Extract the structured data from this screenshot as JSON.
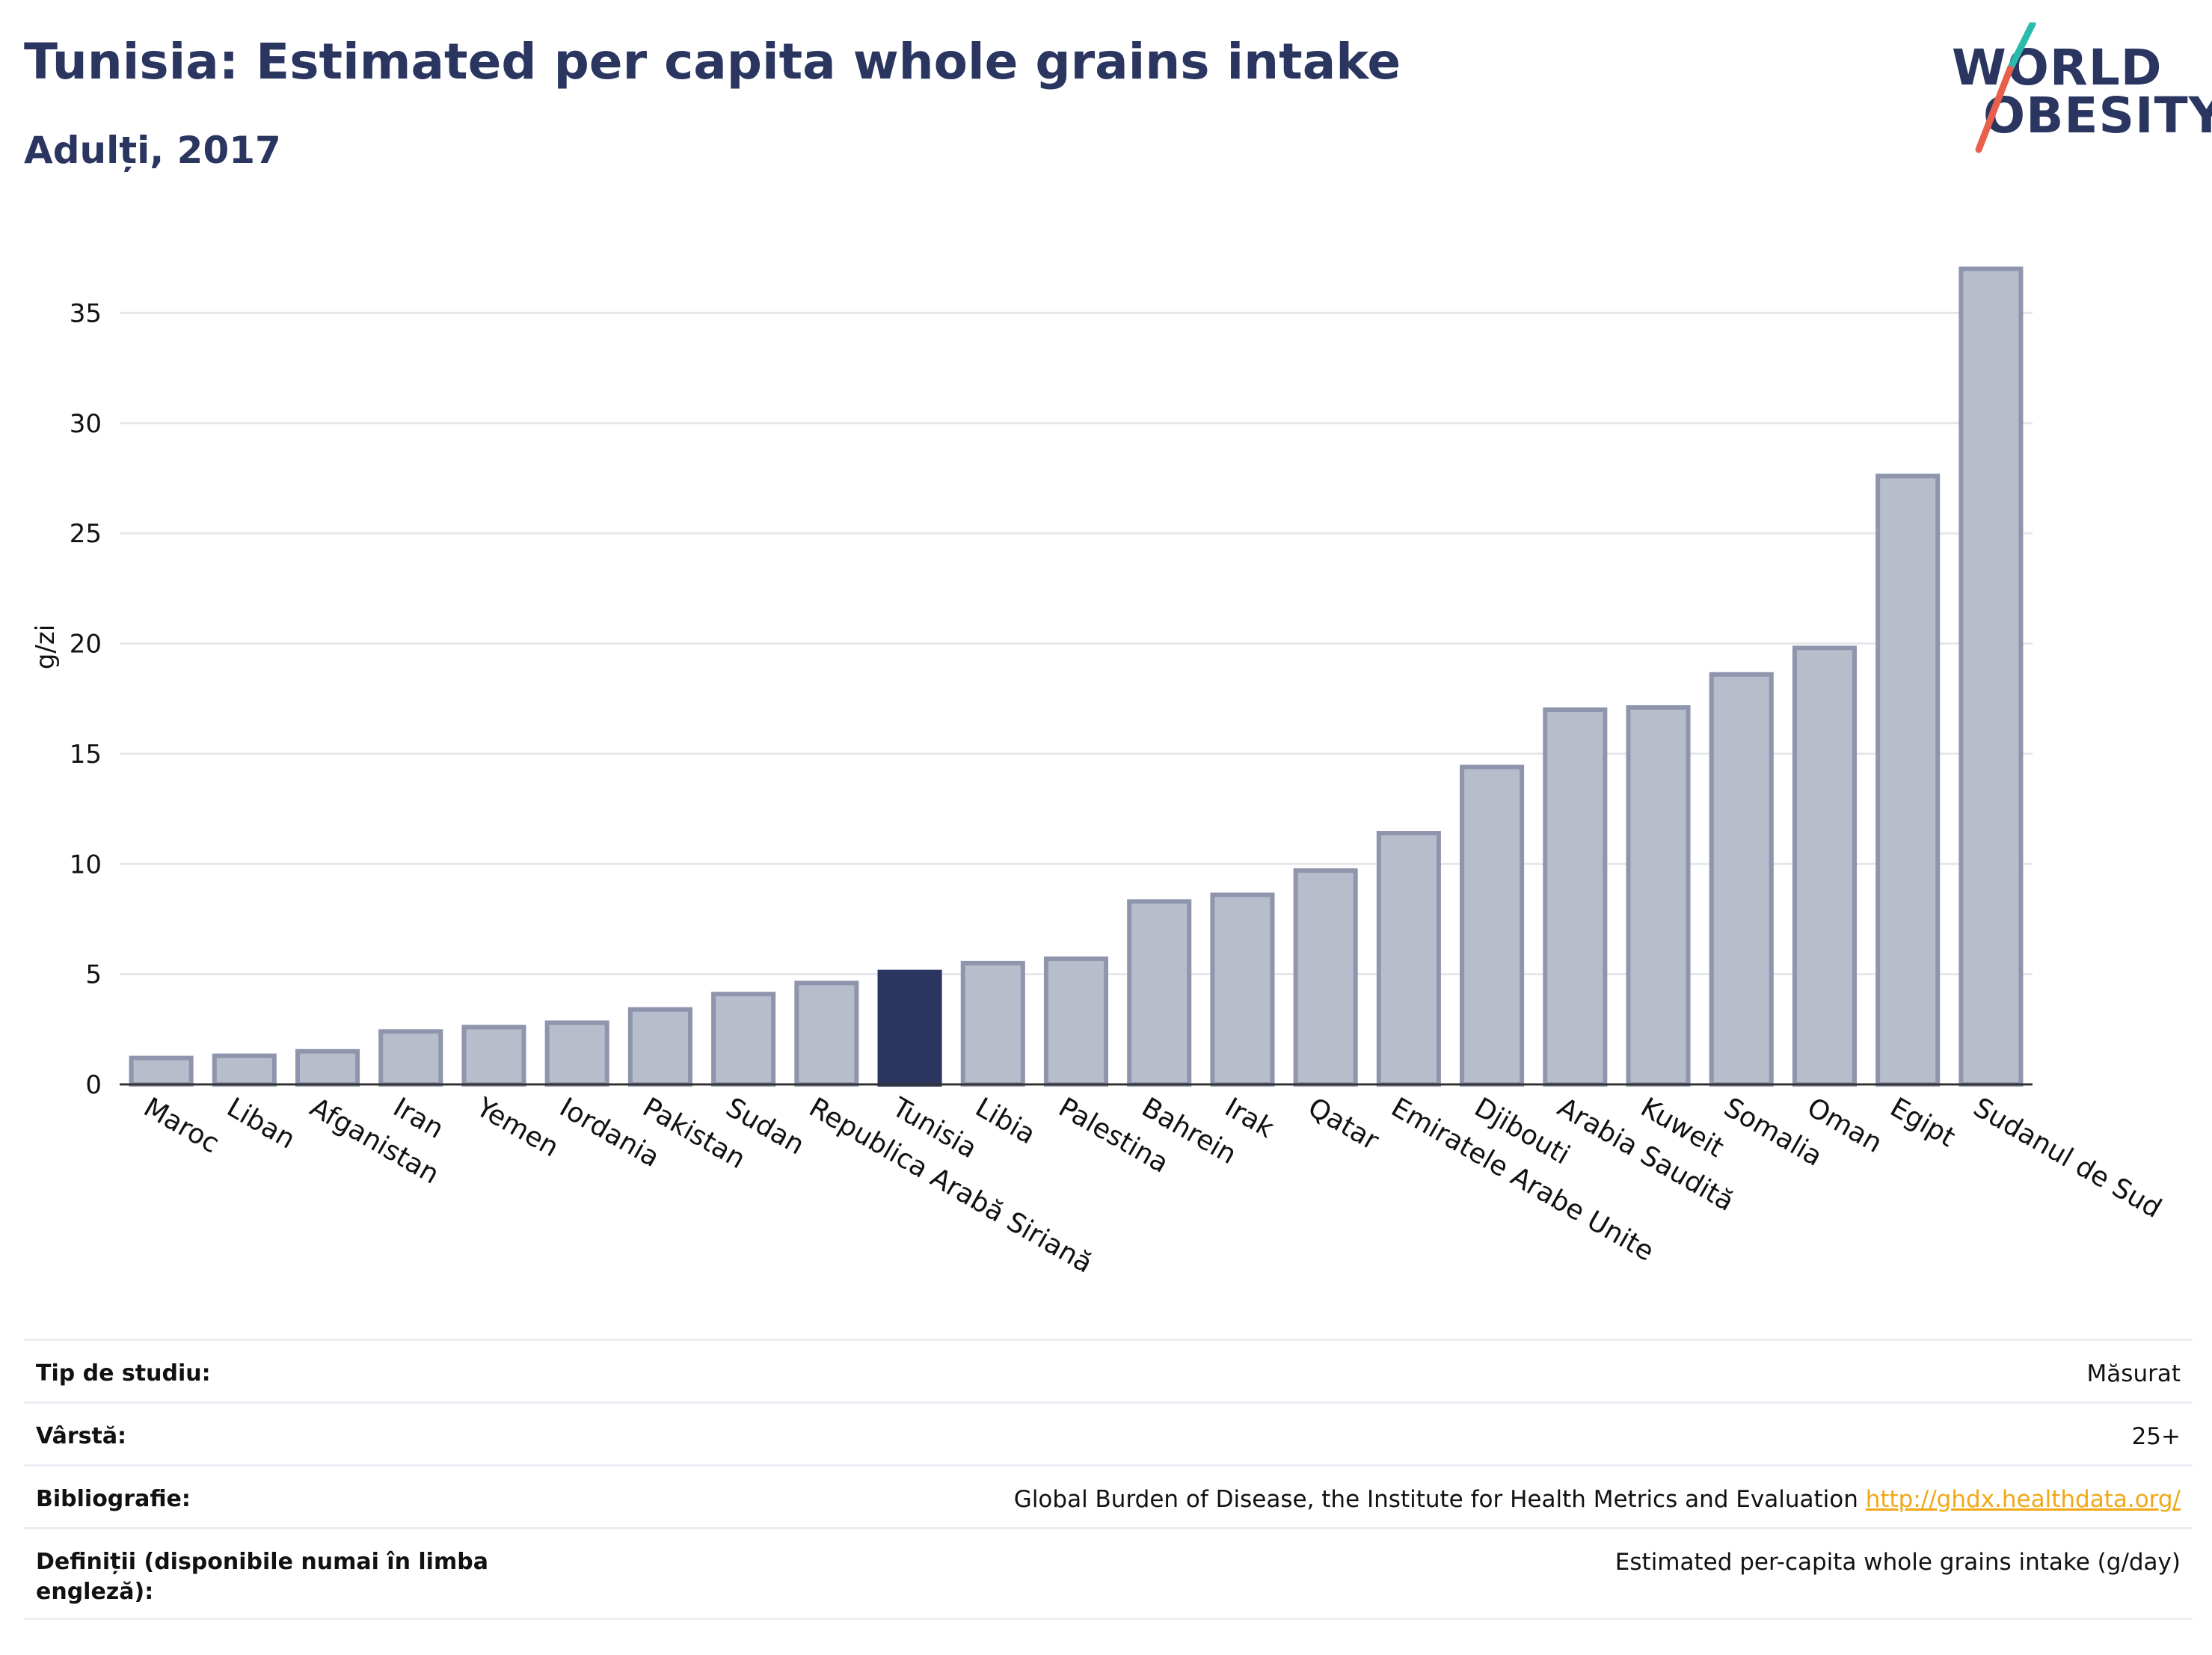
{
  "header": {
    "title": "Tunisia: Estimated per capita whole grains intake",
    "subtitle": "Adulți, 2017",
    "logo_line1": "WORLD",
    "logo_line2": "OBESITY"
  },
  "colors": {
    "title": "#2a3560",
    "bar_default": "#b8bdcc",
    "bar_default_stroke": "#8e95ad",
    "bar_highlight": "#2a3560",
    "logo_teal": "#2bbbad",
    "logo_coral": "#e8604c",
    "link": "#f0a818"
  },
  "chart_data": {
    "type": "bar",
    "ylabel": "g/zi",
    "ylim": [
      0,
      38
    ],
    "yticks": [
      0,
      5,
      10,
      15,
      20,
      25,
      30,
      35
    ],
    "grid": true,
    "highlight": "Tunisia",
    "categories": [
      "Maroc",
      "Liban",
      "Afganistan",
      "Iran",
      "Yemen",
      "Iordania",
      "Pakistan",
      "Sudan",
      "Republica Arabă Siriană",
      "Tunisia",
      "Libia",
      "Palestina",
      "Bahrein",
      "Irak",
      "Qatar",
      "Emiratele Arabe Unite",
      "Djibouti",
      "Arabia Saudită",
      "Kuweit",
      "Somalia",
      "Oman",
      "Egipt",
      "Sudanul de Sud"
    ],
    "values": [
      1.2,
      1.3,
      1.5,
      2.4,
      2.6,
      2.8,
      3.4,
      4.1,
      4.6,
      5.1,
      5.5,
      5.7,
      8.3,
      8.6,
      9.7,
      11.4,
      14.4,
      17.0,
      17.1,
      18.6,
      19.8,
      27.6,
      37.0
    ]
  },
  "info": {
    "rows": [
      {
        "label": "Tip de studiu:",
        "value": "Măsurat"
      },
      {
        "label": "Vârstă:",
        "value": "25+"
      },
      {
        "label": "Bibliografie:",
        "value": "Global Burden of Disease, the Institute for Health Metrics and Evaluation",
        "link": "http://ghdx.healthdata.org/"
      },
      {
        "label": "Definiții (disponibile numai în limba engleză):",
        "value": "Estimated per-capita whole grains intake (g/day)"
      }
    ]
  }
}
